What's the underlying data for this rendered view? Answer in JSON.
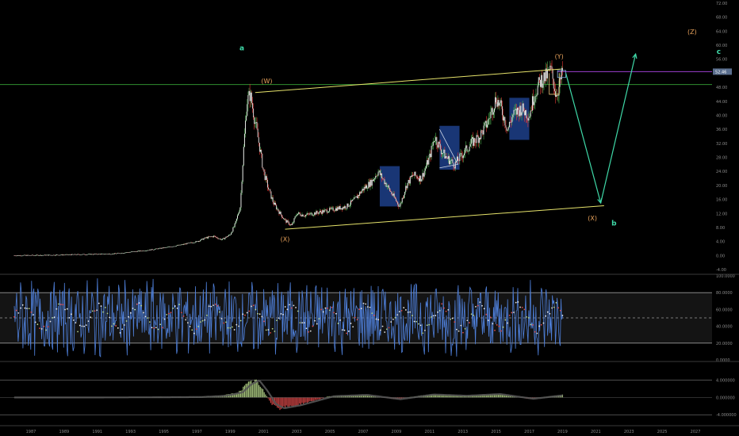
{
  "chart_data": [
    {
      "type": "line",
      "panel": "price",
      "y_ticks": [
        "-4.00",
        "0.00",
        "4.00",
        "8.00",
        "12.00",
        "16.00",
        "20.00",
        "24.00",
        "28.00",
        "32.00",
        "36.00",
        "40.00",
        "44.00",
        "48.00",
        "52.00",
        "56.00",
        "60.00",
        "64.00",
        "68.00",
        "72.00"
      ],
      "y_range": [
        -4,
        72
      ],
      "x_range": [
        1986,
        2028
      ],
      "last_price": "52.46",
      "last_price_value": 52.46,
      "resistance_level": 48.8,
      "series": [
        {
          "x": [
            1986,
            1988,
            1990,
            1992,
            1993,
            1994,
            1995,
            1996,
            1997,
            1997.5,
            1998,
            1998.5,
            1999,
            1999.3,
            1999.6,
            1999.8,
            2000,
            2000.2,
            2000.5,
            2000.8,
            2001,
            2001.3,
            2001.6,
            2002,
            2002.3,
            2002.7,
            2003,
            2003.5,
            2004,
            2004.5,
            2005,
            2005.5,
            2006,
            2006.5,
            2007,
            2007.5,
            2007.9,
            2008.3,
            2008.8,
            2009.2,
            2009.6,
            2010,
            2010.5,
            2011,
            2011.3,
            2011.7,
            2012,
            2012.5,
            2013,
            2013.5,
            2014,
            2014.5,
            2015,
            2015.3,
            2015.7,
            2016,
            2016.5,
            2017,
            2017.3,
            2017.7,
            2018,
            2018.3,
            2018.6,
            2018.8,
            2019
          ],
          "y": [
            0,
            0.1,
            0.3,
            0.5,
            1,
            1.5,
            2.2,
            3,
            4,
            5,
            5.5,
            4.5,
            6,
            9,
            14,
            30,
            44,
            46,
            38,
            30,
            24,
            19,
            15,
            12,
            10,
            8.5,
            12,
            11.5,
            12,
            12.5,
            13,
            13.5,
            14,
            16,
            19,
            21,
            24,
            21,
            17,
            14,
            20,
            23,
            22,
            28,
            34,
            30,
            28,
            26,
            29,
            32,
            34,
            38,
            45,
            42,
            36,
            40,
            42,
            40,
            46,
            50,
            51,
            53,
            46,
            48,
            52.5
          ]
        }
      ],
      "annotations": [
        {
          "text": "a",
          "x": 1999.7,
          "y": 58.5,
          "color": "#3fd9a8"
        },
        {
          "text": "(W)",
          "x": 2001.2,
          "y": 49.2,
          "color": "#e8a25b"
        },
        {
          "text": "(X)",
          "x": 2002.3,
          "y": 4,
          "color": "#e8a25b"
        },
        {
          "text": "(Y)",
          "x": 2018.8,
          "y": 56.2,
          "color": "#e8a25b"
        },
        {
          "text": "(X)",
          "x": 2020.8,
          "y": 10,
          "color": "#e8a25b"
        },
        {
          "text": "b",
          "x": 2022.1,
          "y": 8.5,
          "color": "#3fd9a8"
        },
        {
          "text": "(Z)",
          "x": 2026.8,
          "y": 63.2,
          "color": "#e8a25b"
        },
        {
          "text": "c",
          "x": 2028.4,
          "y": 57.5,
          "color": "#3fd9a8"
        }
      ],
      "channel_lines": [
        {
          "from": [
            2000.5,
            46.5
          ],
          "to": [
            2018.9,
            53.2
          ],
          "color": "#e6e36b"
        },
        {
          "from": [
            2002.3,
            7.5
          ],
          "to": [
            2021.5,
            14.2
          ],
          "color": "#e6e36b"
        }
      ],
      "projection": {
        "points": [
          [
            2019.2,
            52
          ],
          [
            2021.3,
            15
          ],
          [
            2023.4,
            57.5
          ]
        ],
        "color": "#3fd9a8"
      },
      "highlight_boxes": [
        {
          "x0": 2008.0,
          "x1": 2009.2,
          "y0": 14,
          "y1": 25.5
        },
        {
          "x0": 2011.6,
          "x1": 2012.8,
          "y0": 24.5,
          "y1": 37
        },
        {
          "x0": 2015.8,
          "x1": 2017.0,
          "y0": 33,
          "y1": 45
        }
      ]
    },
    {
      "type": "line",
      "panel": "oscillator",
      "y_ticks": [
        "0.0000",
        "20.0000",
        "40.0000",
        "60.0000",
        "80.0000",
        "100.0000"
      ],
      "y_range": [
        0,
        100
      ],
      "band_upper": 80,
      "band_mid": 50,
      "band_lower": 20
    },
    {
      "type": "bar",
      "panel": "histogram",
      "y_ticks": [
        "-4.000000",
        "0.000000",
        "4.000000"
      ],
      "y_range": [
        -6,
        8
      ],
      "values_x": [
        1986,
        1990,
        1994,
        1997,
        1998.5,
        1999.5,
        2000,
        2000.5,
        2001,
        2001.5,
        2002,
        2003,
        2005,
        2007,
        2009,
        2011,
        2013,
        2015,
        2017,
        2019
      ],
      "values_y": [
        0,
        0,
        0.05,
        0.1,
        0.4,
        1.2,
        3,
        4,
        1.5,
        -1.5,
        -2.5,
        -1.8,
        0.3,
        0.6,
        -0.4,
        0.7,
        0.4,
        0.8,
        -0.3,
        0.6
      ]
    }
  ],
  "x_axis": {
    "labels": [
      "1987",
      "1989",
      "1991",
      "1993",
      "1995",
      "1997",
      "1999",
      "2001",
      "2003",
      "2005",
      "2007",
      "2009",
      "2011",
      "2013",
      "2015",
      "2017",
      "2019",
      "2021",
      "2023",
      "2025",
      "2027"
    ]
  },
  "colors": {
    "background": "#000000",
    "price": "#d8d8d8",
    "up": "#4caf50",
    "down": "#e53935",
    "oscillator": "#4e7fd9",
    "hist_pos": "#b7d78a",
    "hist_neg": "#e04a4a",
    "signal": "#555555",
    "box": "#1d3f8a",
    "resistance": "#2f8f2f",
    "last_price_line": "#9b3fd1"
  }
}
